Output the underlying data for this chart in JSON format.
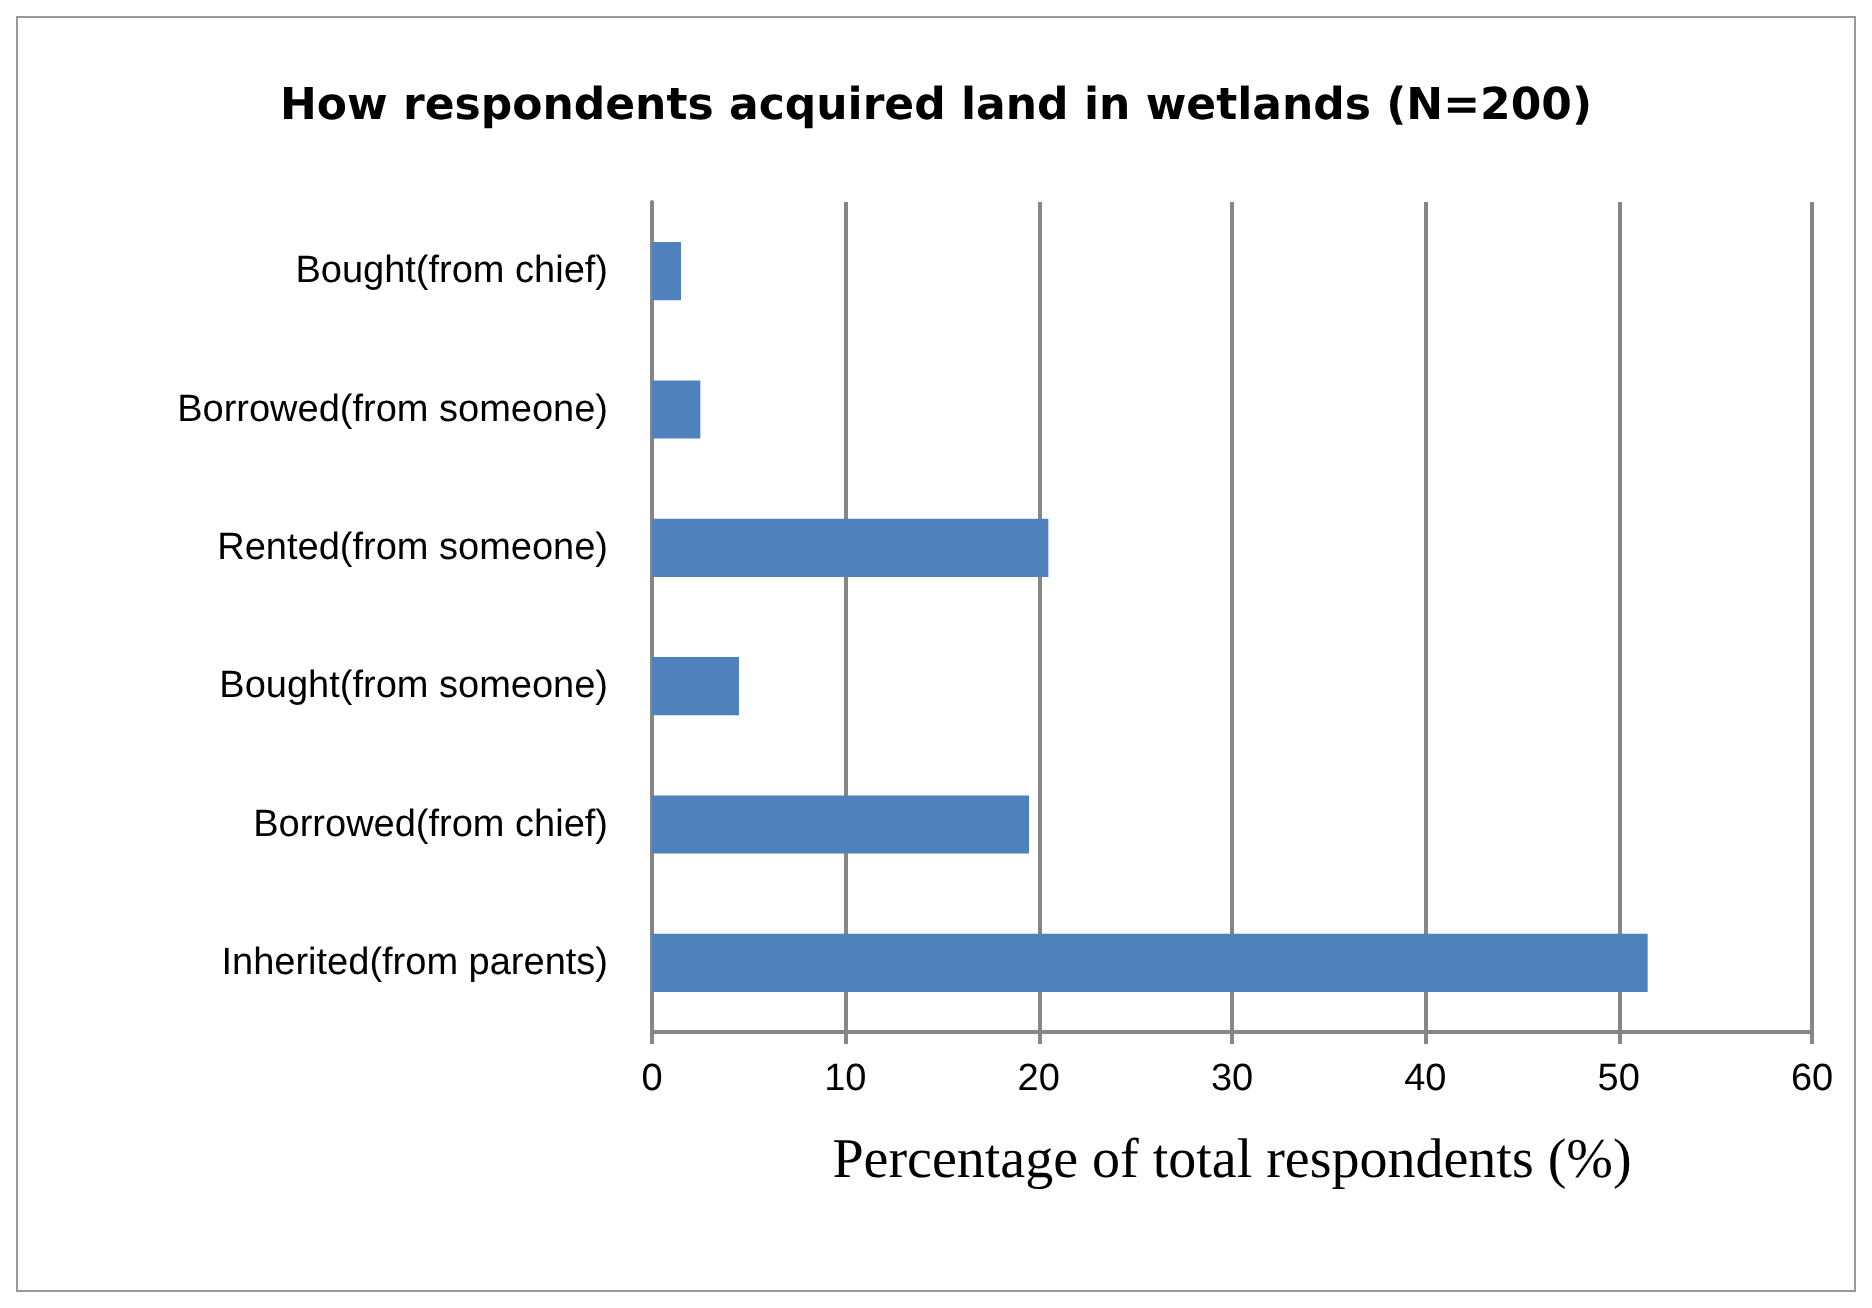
{
  "chart_data": {
    "type": "bar",
    "orientation": "horizontal",
    "title": "How respondents acquired land in wetlands (N=200)",
    "xlabel": "Percentage of total respondents (%)",
    "categories": [
      "Bought(from chief)",
      "Borrowed(from someone)",
      "Rented(from someone)",
      "Bought(from someone)",
      "Borrowed(from chief)",
      "Inherited(from parents)"
    ],
    "values": [
      1.5,
      2.5,
      20.5,
      4.5,
      19.5,
      51.5
    ],
    "color": "#4f81bd",
    "xlim": [
      0,
      60
    ],
    "xticks": [
      0,
      10,
      20,
      30,
      40,
      50,
      60
    ],
    "grid": "x"
  }
}
